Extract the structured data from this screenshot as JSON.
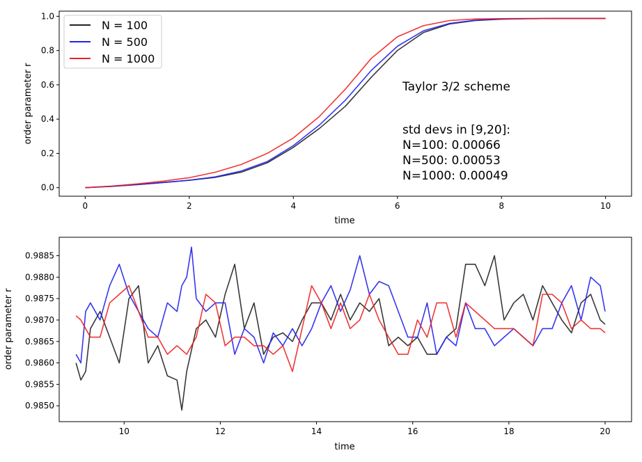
{
  "chart_data": [
    {
      "type": "line",
      "title": "",
      "xlabel": "time",
      "ylabel": "order parameter r",
      "xlim": [
        -0.5,
        10.5
      ],
      "ylim": [
        -0.05,
        1.03
      ],
      "xticks": [
        0,
        2,
        4,
        6,
        8,
        10
      ],
      "yticks": [
        0.0,
        0.2,
        0.4,
        0.6,
        0.8,
        1.0
      ],
      "xtick_labels": [
        "0",
        "2",
        "4",
        "6",
        "8",
        "10"
      ],
      "ytick_labels": [
        "0.0",
        "0.2",
        "0.4",
        "0.6",
        "0.8",
        "1.0"
      ],
      "legend_position": "top-left",
      "grid": false,
      "annotations": [
        "Taylor 3/2 scheme",
        "std devs in [9,20]:",
        "N=100: 0.00066",
        "N=500: 0.00053",
        "N=1000: 0.00049"
      ],
      "series": [
        {
          "name": "N = 100",
          "color": "#222222",
          "x": [
            0,
            0.5,
            1,
            1.5,
            2,
            2.5,
            3,
            3.5,
            4,
            4.5,
            5,
            5.5,
            6,
            6.5,
            7,
            7.5,
            8,
            8.5,
            9,
            9.5,
            10
          ],
          "values": [
            0.0,
            0.007,
            0.018,
            0.03,
            0.043,
            0.06,
            0.09,
            0.145,
            0.235,
            0.345,
            0.475,
            0.645,
            0.8,
            0.905,
            0.955,
            0.975,
            0.983,
            0.986,
            0.987,
            0.987,
            0.987
          ]
        },
        {
          "name": "N = 500",
          "color": "#2020ee",
          "x": [
            0,
            0.5,
            1,
            1.5,
            2,
            2.5,
            3,
            3.5,
            4,
            4.5,
            5,
            5.5,
            6,
            6.5,
            7,
            7.5,
            8,
            8.5,
            9,
            9.5,
            10
          ],
          "values": [
            0.0,
            0.008,
            0.018,
            0.03,
            0.043,
            0.063,
            0.097,
            0.152,
            0.245,
            0.365,
            0.51,
            0.685,
            0.825,
            0.915,
            0.958,
            0.977,
            0.984,
            0.986,
            0.987,
            0.987,
            0.987
          ]
        },
        {
          "name": "N = 1000",
          "color": "#ee2020",
          "x": [
            0,
            0.5,
            1,
            1.5,
            2,
            2.5,
            3,
            3.5,
            4,
            4.5,
            5,
            5.5,
            6,
            6.5,
            7,
            7.5,
            8,
            8.5,
            9,
            9.5,
            10
          ],
          "values": [
            0.0,
            0.009,
            0.022,
            0.038,
            0.058,
            0.09,
            0.135,
            0.2,
            0.29,
            0.415,
            0.575,
            0.755,
            0.88,
            0.945,
            0.975,
            0.984,
            0.986,
            0.987,
            0.987,
            0.987,
            0.987
          ]
        }
      ]
    },
    {
      "type": "line",
      "title": "",
      "xlabel": "time",
      "ylabel": "order parameter r",
      "xlim": [
        8.65,
        20.55
      ],
      "ylim": [
        0.98463,
        0.98893
      ],
      "xticks": [
        10,
        12,
        14,
        16,
        18,
        20
      ],
      "yticks": [
        0.985,
        0.9855,
        0.986,
        0.9865,
        0.987,
        0.9875,
        0.988,
        0.9885
      ],
      "xtick_labels": [
        "10",
        "12",
        "14",
        "16",
        "18",
        "20"
      ],
      "ytick_labels": [
        "0.9850",
        "0.9855",
        "0.9860",
        "0.9865",
        "0.9870",
        "0.9875",
        "0.9880",
        "0.9885"
      ],
      "grid": false,
      "series": [
        {
          "color": "#222222",
          "x": [
            9.0,
            9.1,
            9.2,
            9.3,
            9.5,
            9.7,
            9.9,
            10.1,
            10.3,
            10.5,
            10.7,
            10.9,
            11.1,
            11.2,
            11.3,
            11.5,
            11.7,
            11.9,
            12.1,
            12.3,
            12.5,
            12.7,
            12.9,
            13.1,
            13.3,
            13.5,
            13.7,
            13.9,
            14.1,
            14.3,
            14.5,
            14.7,
            14.9,
            15.1,
            15.3,
            15.5,
            15.7,
            15.9,
            16.1,
            16.3,
            16.5,
            16.7,
            16.9,
            17.1,
            17.3,
            17.5,
            17.7,
            17.9,
            18.1,
            18.3,
            18.5,
            18.7,
            18.9,
            19.1,
            19.3,
            19.5,
            19.7,
            19.9,
            20.0
          ],
          "values": [
            0.986,
            0.9856,
            0.9858,
            0.9868,
            0.9872,
            0.9866,
            0.986,
            0.9875,
            0.9878,
            0.986,
            0.9864,
            0.9857,
            0.9856,
            0.9849,
            0.9858,
            0.9868,
            0.987,
            0.9866,
            0.9876,
            0.9883,
            0.9868,
            0.9874,
            0.9862,
            0.9866,
            0.9867,
            0.9865,
            0.987,
            0.9874,
            0.9874,
            0.987,
            0.9876,
            0.987,
            0.9874,
            0.9872,
            0.9875,
            0.9864,
            0.9866,
            0.9864,
            0.9866,
            0.9862,
            0.9862,
            0.9866,
            0.9868,
            0.9883,
            0.9883,
            0.9878,
            0.9885,
            0.987,
            0.9874,
            0.9876,
            0.987,
            0.9878,
            0.9874,
            0.987,
            0.9867,
            0.9874,
            0.9876,
            0.987,
            0.9869
          ]
        },
        {
          "color": "#2020ee",
          "x": [
            9.0,
            9.1,
            9.2,
            9.3,
            9.5,
            9.7,
            9.9,
            10.1,
            10.3,
            10.5,
            10.7,
            10.9,
            11.1,
            11.2,
            11.3,
            11.4,
            11.5,
            11.7,
            11.9,
            12.1,
            12.3,
            12.5,
            12.7,
            12.9,
            13.1,
            13.3,
            13.5,
            13.7,
            13.9,
            14.1,
            14.3,
            14.5,
            14.7,
            14.9,
            15.1,
            15.3,
            15.5,
            15.7,
            15.9,
            16.1,
            16.3,
            16.5,
            16.7,
            16.9,
            17.1,
            17.3,
            17.5,
            17.7,
            17.9,
            18.1,
            18.3,
            18.5,
            18.7,
            18.9,
            19.1,
            19.3,
            19.5,
            19.7,
            19.9,
            20.0
          ],
          "values": [
            0.9862,
            0.986,
            0.9872,
            0.9874,
            0.987,
            0.9878,
            0.9883,
            0.9876,
            0.9872,
            0.9868,
            0.9866,
            0.9874,
            0.9872,
            0.9878,
            0.988,
            0.9887,
            0.9875,
            0.9872,
            0.9874,
            0.9874,
            0.9862,
            0.9868,
            0.9866,
            0.986,
            0.9867,
            0.9864,
            0.9868,
            0.9864,
            0.9868,
            0.9874,
            0.9878,
            0.9872,
            0.9877,
            0.9885,
            0.9876,
            0.9879,
            0.9878,
            0.9872,
            0.9866,
            0.9866,
            0.9874,
            0.9862,
            0.9866,
            0.9864,
            0.9874,
            0.9868,
            0.9868,
            0.9864,
            0.9866,
            0.9868,
            0.9866,
            0.9864,
            0.9868,
            0.9868,
            0.9874,
            0.9878,
            0.987,
            0.988,
            0.9878,
            0.9872
          ]
        },
        {
          "color": "#ee2020",
          "x": [
            9.0,
            9.1,
            9.2,
            9.3,
            9.5,
            9.7,
            9.9,
            10.1,
            10.3,
            10.5,
            10.7,
            10.9,
            11.1,
            11.3,
            11.5,
            11.7,
            11.9,
            12.1,
            12.3,
            12.5,
            12.7,
            12.9,
            13.1,
            13.3,
            13.5,
            13.7,
            13.9,
            14.1,
            14.3,
            14.5,
            14.7,
            14.9,
            15.1,
            15.3,
            15.5,
            15.7,
            15.9,
            16.1,
            16.3,
            16.5,
            16.7,
            16.9,
            17.1,
            17.3,
            17.5,
            17.7,
            17.9,
            18.1,
            18.3,
            18.5,
            18.7,
            18.9,
            19.1,
            19.3,
            19.5,
            19.7,
            19.9,
            20.0
          ],
          "values": [
            0.9871,
            0.987,
            0.9868,
            0.9866,
            0.9866,
            0.9874,
            0.9876,
            0.9878,
            0.9872,
            0.9866,
            0.9866,
            0.9862,
            0.9864,
            0.9862,
            0.9866,
            0.9876,
            0.9874,
            0.9864,
            0.9866,
            0.9866,
            0.9864,
            0.9864,
            0.9862,
            0.9864,
            0.9858,
            0.9868,
            0.9878,
            0.9874,
            0.9868,
            0.9874,
            0.9868,
            0.987,
            0.9876,
            0.987,
            0.9866,
            0.9862,
            0.9862,
            0.987,
            0.9866,
            0.9874,
            0.9874,
            0.9866,
            0.9874,
            0.9872,
            0.987,
            0.9868,
            0.9868,
            0.9868,
            0.9866,
            0.9864,
            0.9876,
            0.9876,
            0.9874,
            0.9868,
            0.987,
            0.9868,
            0.9868,
            0.9867
          ]
        }
      ]
    }
  ]
}
